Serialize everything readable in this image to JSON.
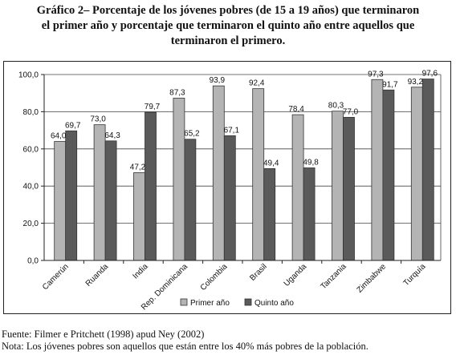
{
  "title_lines": [
    "Gráfico 2– Porcentaje de los jóvenes pobres (de 15 a 19 años) que terminaron",
    "el primer año y porcentaje que terminaron el quinto año entre aquellos que",
    "terminaron el primero."
  ],
  "source": "Fuente: Filmer e Pritchett (1998) apud Ney (2002)",
  "note": "Nota: Los jóvenes pobres son aquellos que están entre los 40% más pobres de la población.",
  "chart_data": {
    "type": "bar",
    "categories": [
      "Camerún",
      "Ruanda",
      "India",
      "Rep. Dominicana",
      "Colombia",
      "Brasil",
      "Uganda",
      "Tanzania",
      "Zimbabwe",
      "Turquía"
    ],
    "series": [
      {
        "name": "Primer año",
        "values": [
          64.0,
          73.0,
          47.2,
          87.3,
          93.9,
          92.4,
          78.4,
          80.3,
          97.3,
          93.2
        ],
        "color": "#b4b4b4"
      },
      {
        "name": "Quinto año",
        "values": [
          69.7,
          64.3,
          79.7,
          65.2,
          67.1,
          49.4,
          49.8,
          77.0,
          91.7,
          97.6
        ],
        "color": "#5a5a5a"
      }
    ],
    "value_labels": [
      [
        "64,0",
        "73,0",
        "47,2",
        "87,3",
        "93,9",
        "92,4",
        "78,4",
        "80,3",
        "97,3",
        "93,2"
      ],
      [
        "69,7",
        "64,3",
        "79,7",
        "65,2",
        "67,1",
        "49,4",
        "49,8",
        "77,0",
        "91,7",
        "97,6"
      ]
    ],
    "ylim": [
      0,
      100
    ],
    "yticks": [
      "0,0",
      "20,0",
      "40,0",
      "60,0",
      "80,0",
      "100,0"
    ],
    "grid": true,
    "legend_position": "bottom"
  }
}
